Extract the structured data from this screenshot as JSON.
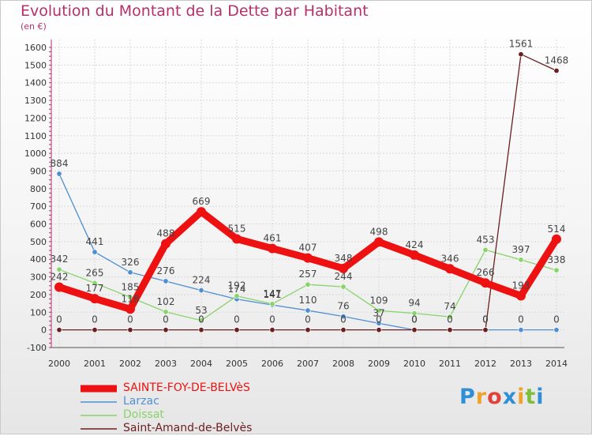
{
  "title": "Evolution du Montant de la Dette par Habitant",
  "subtitle": "(en €)",
  "logo": {
    "letters": [
      "P",
      "r",
      "o",
      "x",
      "i",
      "t",
      "i"
    ],
    "colors": [
      "#2f8fd6",
      "#f0a12a",
      "#e0433a",
      "#2f8fd6",
      "#f0a12a",
      "#7cbf3c",
      "#2f8fd6"
    ]
  },
  "chart_data": {
    "type": "line",
    "x": [
      "2000",
      "2001",
      "2002",
      "2003",
      "2004",
      "2005",
      "2006",
      "2007",
      "2008",
      "2009",
      "2010",
      "2011",
      "2012",
      "2013",
      "2014"
    ],
    "yticks": [
      "-100",
      "0",
      "100",
      "200",
      "300",
      "400",
      "500",
      "600",
      "700",
      "800",
      "900",
      "1000",
      "1100",
      "1200",
      "1300",
      "1400",
      "1500",
      "1600"
    ],
    "ylim": [
      -100,
      1600
    ],
    "grid": true,
    "legend_position": "bottom-left",
    "series": [
      {
        "name": "SAINTE-FOY-DE-BELVèS",
        "color": "#ee1111",
        "values": [
          242,
          177,
          118,
          488,
          669,
          515,
          461,
          407,
          348,
          498,
          424,
          346,
          266,
          193,
          514
        ],
        "labels": [
          "242",
          "177",
          "118",
          "488",
          "669",
          "515",
          "461",
          "407",
          "348",
          "498",
          "424",
          "346",
          "266",
          "193",
          "514"
        ]
      },
      {
        "name": "Larzac",
        "color": "#4f8fd1",
        "values": [
          884,
          441,
          326,
          276,
          224,
          174,
          141,
          110,
          76,
          37,
          0,
          0,
          0,
          0,
          0
        ],
        "labels": [
          "884",
          "441",
          "326",
          "276",
          "224",
          "174",
          "141",
          "110",
          "76",
          "37",
          "0",
          "",
          "0",
          "0",
          "0"
        ]
      },
      {
        "name": "Doissat",
        "color": "#88d36a",
        "values": [
          342,
          265,
          185,
          102,
          53,
          192,
          147,
          257,
          244,
          109,
          94,
          74,
          453,
          397,
          338
        ],
        "labels": [
          "342",
          "265",
          "185",
          "102",
          "53",
          "192",
          "147",
          "257",
          "244",
          "109",
          "94",
          "74",
          "453",
          "397",
          "338"
        ]
      },
      {
        "name": "Saint-Amand-de-Belvès",
        "color": "#6b1e1e",
        "values": [
          0,
          0,
          0,
          0,
          0,
          0,
          0,
          0,
          0,
          0,
          0,
          0,
          0,
          1561,
          1468
        ],
        "labels": [
          "0",
          "0",
          "0",
          "0",
          "0",
          "0",
          "0",
          "0",
          "0",
          "0",
          "0",
          "0",
          "0",
          "1561",
          "1468"
        ]
      }
    ]
  }
}
